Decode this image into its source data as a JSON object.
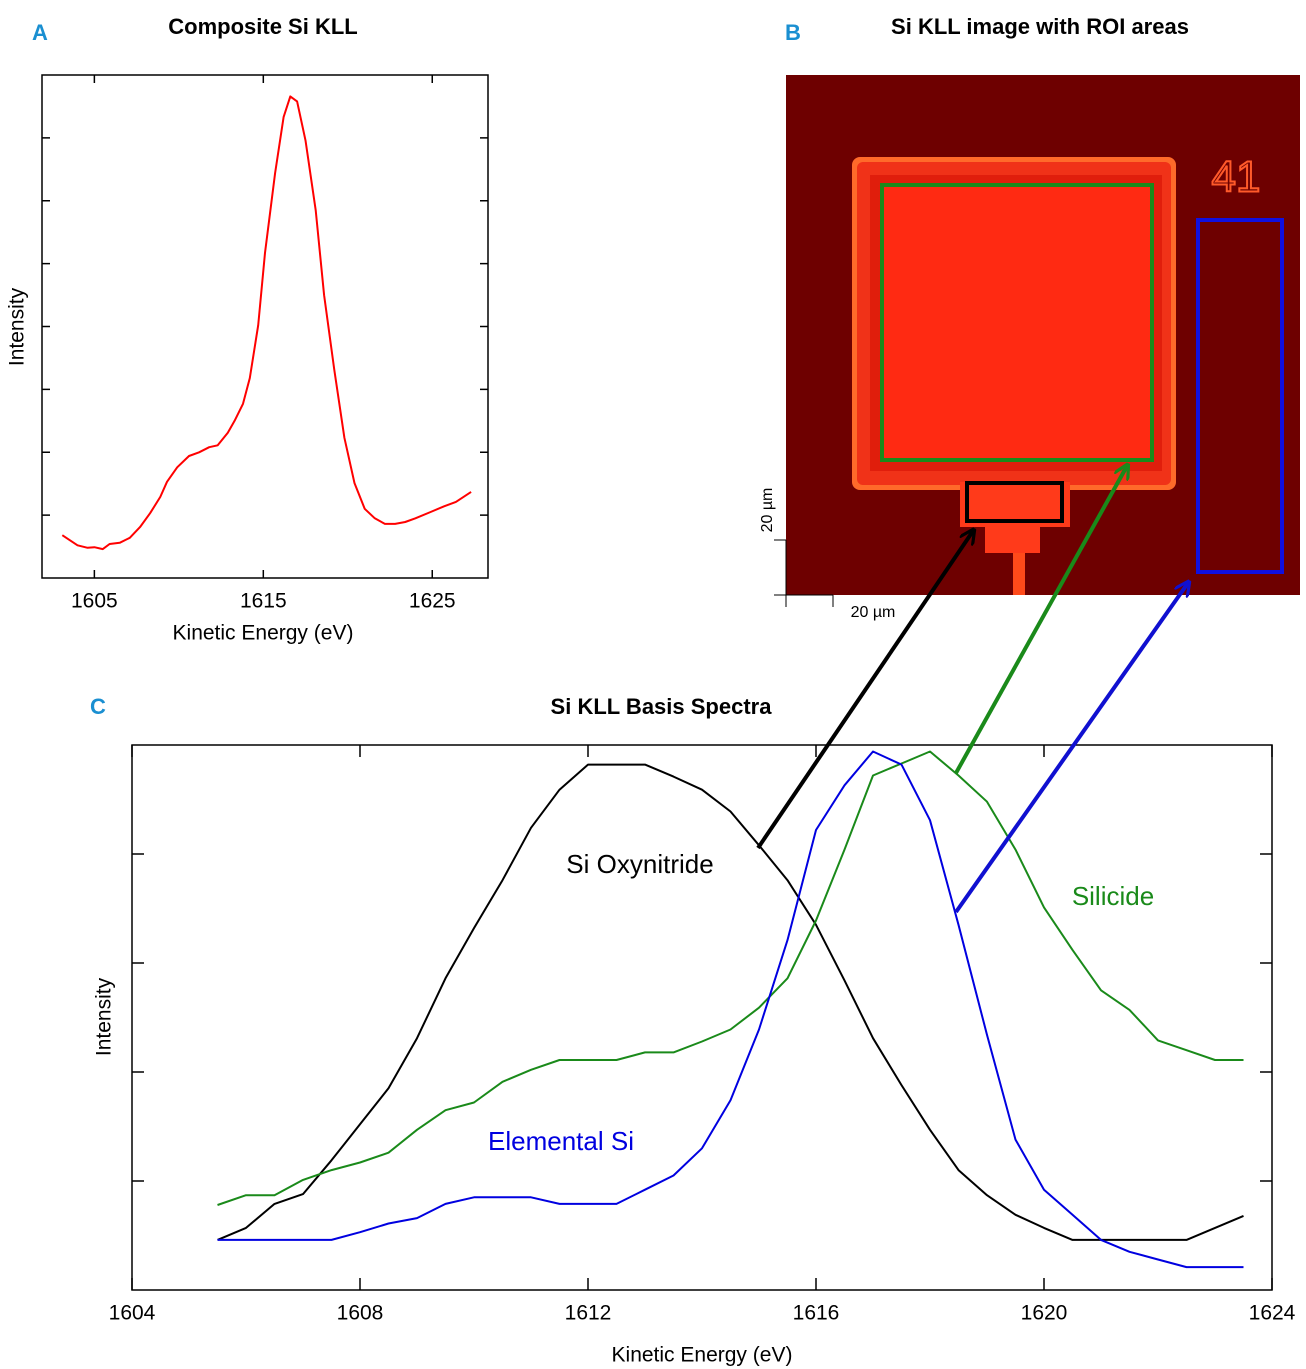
{
  "chart_data": [
    {
      "type": "line",
      "panel": "A",
      "title": "Composite Si KLL",
      "x_label": "Kinetic Energy (eV)",
      "y_label": "Intensity",
      "xlim": [
        1601.9,
        1628.3
      ],
      "xticks": [
        1605,
        1615,
        1625
      ],
      "ylim": [
        0,
        8
      ],
      "yticks": [
        1,
        2,
        3,
        4,
        5,
        6,
        7
      ],
      "color": "#ff0000",
      "x": [
        1603.1,
        1604.0,
        1604.6,
        1605.0,
        1605.5,
        1605.9,
        1606.5,
        1607.1,
        1607.7,
        1608.3,
        1608.9,
        1609.3,
        1609.9,
        1610.6,
        1611.2,
        1611.8,
        1612.3,
        1612.9,
        1613.3,
        1613.8,
        1614.2,
        1614.7,
        1615.1,
        1615.7,
        1616.2,
        1616.6,
        1617.0,
        1617.5,
        1618.1,
        1618.6,
        1619.2,
        1619.8,
        1620.4,
        1621.0,
        1621.6,
        1622.2,
        1622.8,
        1623.4,
        1624.0,
        1624.9,
        1625.7,
        1626.4,
        1627.3
      ],
      "values": [
        0.68,
        0.52,
        0.48,
        0.49,
        0.46,
        0.54,
        0.56,
        0.64,
        0.81,
        1.03,
        1.29,
        1.53,
        1.76,
        1.94,
        2.0,
        2.08,
        2.11,
        2.31,
        2.5,
        2.77,
        3.18,
        4.02,
        5.17,
        6.44,
        7.33,
        7.66,
        7.58,
        6.96,
        5.85,
        4.5,
        3.31,
        2.23,
        1.51,
        1.1,
        0.95,
        0.86,
        0.86,
        0.89,
        0.95,
        1.05,
        1.14,
        1.21,
        1.37
      ]
    },
    {
      "type": "line",
      "panel": "C",
      "title": "Si KLL Basis Spectra",
      "x_label": "Kinetic Energy (eV)",
      "y_label": "Intensity",
      "xlim": [
        1604,
        1624
      ],
      "xticks": [
        1604,
        1608,
        1612,
        1616,
        1620,
        1624
      ],
      "ylim": [
        0,
        5
      ],
      "yticks": [
        1,
        2,
        3,
        4
      ],
      "x": [
        1605.5,
        1606,
        1606.5,
        1607,
        1607.5,
        1608,
        1608.5,
        1609,
        1609.5,
        1610,
        1610.5,
        1611,
        1611.5,
        1612,
        1612.5,
        1613,
        1613.5,
        1614,
        1614.5,
        1615,
        1615.5,
        1616,
        1616.5,
        1617,
        1617.5,
        1618,
        1618.5,
        1619,
        1619.5,
        1620,
        1620.5,
        1621,
        1621.5,
        1622,
        1622.5,
        1623,
        1623.5
      ],
      "series": [
        {
          "name": "Si Oxynitride",
          "color": "#000000",
          "values": [
            0.46,
            0.57,
            0.79,
            0.88,
            1.19,
            1.52,
            1.85,
            2.31,
            2.86,
            3.32,
            3.76,
            4.24,
            4.59,
            4.82,
            4.82,
            4.82,
            4.71,
            4.59,
            4.39,
            4.08,
            3.76,
            3.35,
            2.84,
            2.31,
            1.88,
            1.47,
            1.1,
            0.87,
            0.69,
            0.57,
            0.46,
            0.46,
            0.46,
            0.46,
            0.46,
            0.57,
            0.68
          ]
        },
        {
          "name": "Silicide",
          "color": "#1a8a1a",
          "values": [
            0.78,
            0.87,
            0.87,
            1.01,
            1.1,
            1.17,
            1.26,
            1.47,
            1.65,
            1.72,
            1.91,
            2.02,
            2.11,
            2.11,
            2.11,
            2.18,
            2.18,
            2.28,
            2.39,
            2.59,
            2.86,
            3.39,
            4.04,
            4.72,
            4.83,
            4.94,
            4.72,
            4.48,
            4.04,
            3.51,
            3.12,
            2.75,
            2.57,
            2.29,
            2.2,
            2.11,
            2.11
          ]
        },
        {
          "name": "Elemental Si",
          "color": "#0000e0",
          "values": [
            0.46,
            0.46,
            0.46,
            0.46,
            0.46,
            0.53,
            0.61,
            0.66,
            0.79,
            0.85,
            0.85,
            0.85,
            0.79,
            0.79,
            0.79,
            0.92,
            1.05,
            1.3,
            1.74,
            2.39,
            3.21,
            4.22,
            4.63,
            4.94,
            4.82,
            4.31,
            3.35,
            2.34,
            1.38,
            0.92,
            0.69,
            0.46,
            0.35,
            0.28,
            0.21,
            0.21,
            0.21
          ]
        }
      ]
    }
  ],
  "image_panel": {
    "panel": "B",
    "title": "Si KLL image with ROI areas",
    "scale_x": "20 µm",
    "scale_y": "20 µm",
    "marker": "41"
  }
}
